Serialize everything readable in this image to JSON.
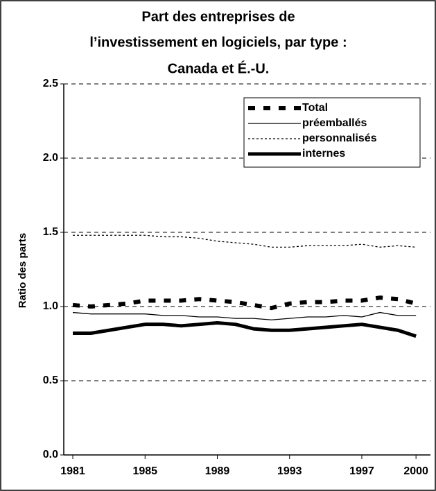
{
  "chart_data": {
    "type": "line",
    "title": [
      "Part des entreprises de",
      "l’investissement en logiciels, par type :",
      "Canada et É.-U."
    ],
    "y_label": "Ratio des parts",
    "x": [
      1981,
      1982,
      1983,
      1984,
      1985,
      1986,
      1987,
      1988,
      1989,
      1990,
      1991,
      1992,
      1993,
      1994,
      1995,
      1996,
      1997,
      1998,
      1999,
      2000
    ],
    "xlim": [
      1980.5,
      2000.8
    ],
    "xticks": [
      1981,
      1985,
      1989,
      1993,
      1997,
      2000
    ],
    "ylim": [
      0,
      2.5
    ],
    "yticks": [
      {
        "value": 0,
        "label": "0.0"
      },
      0.5,
      {
        "value": 1,
        "label": "1.0"
      },
      1.5,
      {
        "value": 2,
        "label": "2.0"
      },
      2.5
    ],
    "grid": true,
    "legend": "upper-right",
    "series": [
      {
        "name": "Total",
        "color": "#000000",
        "width": 6,
        "dash": "10,12",
        "values": [
          1.01,
          1.0,
          1.01,
          1.02,
          1.04,
          1.04,
          1.04,
          1.05,
          1.04,
          1.03,
          1.01,
          0.99,
          1.02,
          1.03,
          1.03,
          1.04,
          1.04,
          1.06,
          1.05,
          1.02
        ]
      },
      {
        "name": "préemballés",
        "color": "#000000",
        "width": 1.3,
        "dash": "none",
        "values": [
          0.96,
          0.95,
          0.95,
          0.95,
          0.95,
          0.94,
          0.94,
          0.93,
          0.93,
          0.92,
          0.92,
          0.91,
          0.92,
          0.93,
          0.93,
          0.94,
          0.93,
          0.96,
          0.94,
          0.94
        ]
      },
      {
        "name": "personnalisés",
        "color": "#000000",
        "width": 1.3,
        "dash": "3,3",
        "values": [
          1.48,
          1.48,
          1.48,
          1.48,
          1.48,
          1.47,
          1.47,
          1.46,
          1.44,
          1.43,
          1.42,
          1.4,
          1.4,
          1.41,
          1.41,
          1.41,
          1.42,
          1.4,
          1.41,
          1.4
        ]
      },
      {
        "name": "internes",
        "color": "#000000",
        "width": 5,
        "dash": "none",
        "values": [
          0.82,
          0.82,
          0.84,
          0.86,
          0.88,
          0.88,
          0.87,
          0.88,
          0.89,
          0.88,
          0.85,
          0.84,
          0.84,
          0.85,
          0.86,
          0.87,
          0.88,
          0.86,
          0.84,
          0.8
        ]
      }
    ]
  }
}
